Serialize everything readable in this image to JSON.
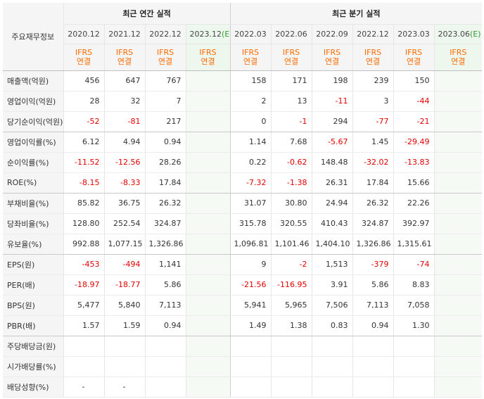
{
  "header": {
    "label_head": "주요재무정보",
    "annual_title": "최근 연간 실적",
    "quarter_title": "최근 분기 실적",
    "annual_periods": [
      "2020.12",
      "2021.12",
      "2022.12",
      "2023.12"
    ],
    "annual_est_mark": "(E)",
    "quarter_periods": [
      "2022.03",
      "2022.06",
      "2022.09",
      "2022.12",
      "2023.03",
      "2023.06"
    ],
    "quarter_est_mark": "(E)",
    "ifrs_top": "IFRS",
    "ifrs_bottom": "연결"
  },
  "rows": [
    {
      "label": "매출액(억원)",
      "values": [
        "456",
        "647",
        "767",
        "",
        "158",
        "171",
        "198",
        "239",
        "150",
        ""
      ]
    },
    {
      "label": "영업이익(억원)",
      "values": [
        "28",
        "32",
        "7",
        "",
        "2",
        "13",
        "-11",
        "3",
        "-44",
        ""
      ]
    },
    {
      "label": "당기순이익(억원)",
      "values": [
        "-52",
        "-81",
        "217",
        "",
        "0",
        "-1",
        "294",
        "-77",
        "-21",
        ""
      ]
    },
    {
      "label": "영업이익률(%)",
      "values": [
        "6.12",
        "4.94",
        "0.94",
        "",
        "1.14",
        "7.68",
        "-5.67",
        "1.45",
        "-29.49",
        ""
      ]
    },
    {
      "label": "순이익률(%)",
      "values": [
        "-11.52",
        "-12.56",
        "28.26",
        "",
        "0.22",
        "-0.62",
        "148.48",
        "-32.02",
        "-13.83",
        ""
      ]
    },
    {
      "label": "ROE(%)",
      "values": [
        "-8.15",
        "-8.33",
        "17.84",
        "",
        "-7.32",
        "-1.38",
        "26.31",
        "17.84",
        "15.66",
        ""
      ]
    },
    {
      "label": "부채비율(%)",
      "values": [
        "85.82",
        "36.75",
        "26.32",
        "",
        "31.07",
        "30.80",
        "24.94",
        "26.32",
        "22.26",
        ""
      ]
    },
    {
      "label": "당좌비율(%)",
      "values": [
        "128.80",
        "252.54",
        "324.87",
        "",
        "315.78",
        "320.55",
        "410.43",
        "324.87",
        "392.97",
        ""
      ]
    },
    {
      "label": "유보율(%)",
      "values": [
        "992.88",
        "1,077.15",
        "1,326.86",
        "",
        "1,096.81",
        "1,101.46",
        "1,404.10",
        "1,326.86",
        "1,315.61",
        ""
      ]
    },
    {
      "label": "EPS(원)",
      "values": [
        "-453",
        "-494",
        "1,141",
        "",
        "9",
        "-2",
        "1,513",
        "-379",
        "-74",
        ""
      ]
    },
    {
      "label": "PER(배)",
      "values": [
        "-18.97",
        "-18.77",
        "5.86",
        "",
        "-21.56",
        "-116.95",
        "3.91",
        "5.86",
        "8.83",
        ""
      ]
    },
    {
      "label": "BPS(원)",
      "values": [
        "5,477",
        "5,840",
        "7,113",
        "",
        "5,941",
        "5,965",
        "7,506",
        "7,113",
        "7,058",
        ""
      ]
    },
    {
      "label": "PBR(배)",
      "values": [
        "1.57",
        "1.59",
        "0.94",
        "",
        "1.49",
        "1.38",
        "0.83",
        "0.94",
        "1.30",
        ""
      ]
    },
    {
      "label": "주당배당금(원)",
      "values": [
        "",
        "",
        "",
        "",
        "",
        "",
        "",
        "",
        "",
        ""
      ]
    },
    {
      "label": "시가배당률(%)",
      "values": [
        "",
        "",
        "",
        "",
        "",
        "",
        "",
        "",
        "",
        ""
      ]
    },
    {
      "label": "배당성향(%)",
      "values": [
        "-",
        "-",
        "",
        "",
        "",
        "",
        "",
        "",
        "",
        ""
      ]
    }
  ],
  "colors": {
    "negative": "#e60000",
    "ifrs": "#ff6a00",
    "estimate": "#2e9e2e"
  }
}
